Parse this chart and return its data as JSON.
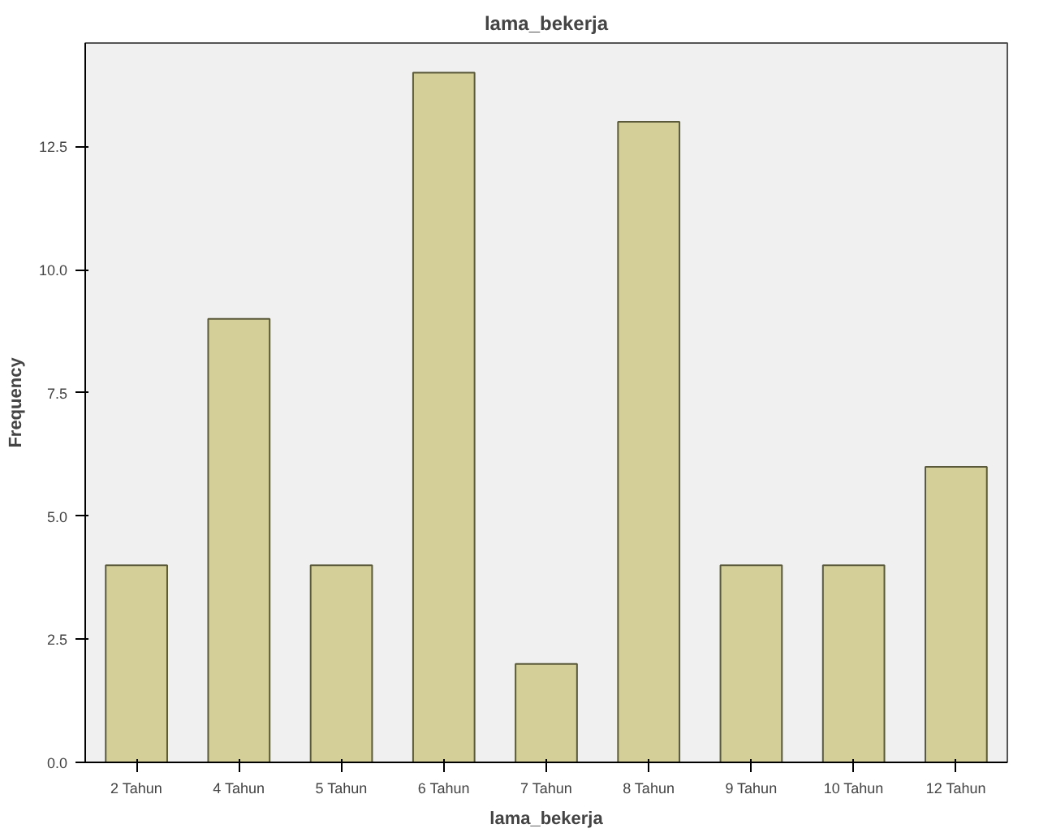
{
  "chart_data": {
    "type": "bar",
    "title": "lama_bekerja",
    "xlabel": "lama_bekerja",
    "ylabel": "Frequency",
    "categories": [
      "2 Tahun",
      "4 Tahun",
      "5 Tahun",
      "6 Tahun",
      "7 Tahun",
      "8 Tahun",
      "9 Tahun",
      "10 Tahun",
      "12 Tahun"
    ],
    "values": [
      4,
      9,
      4,
      14,
      2,
      13,
      4,
      4,
      6
    ],
    "color": "#d4cf98",
    "ylim": [
      0,
      14.6
    ],
    "yticks": [
      {
        "value": 0,
        "label": "0.0"
      },
      {
        "value": 2.5,
        "label": "2.5"
      },
      {
        "value": 5,
        "label": "5.0"
      },
      {
        "value": 7.5,
        "label": "7.5"
      },
      {
        "value": 10,
        "label": "10.0"
      },
      {
        "value": 12.5,
        "label": "12.5"
      }
    ],
    "grid": false
  }
}
